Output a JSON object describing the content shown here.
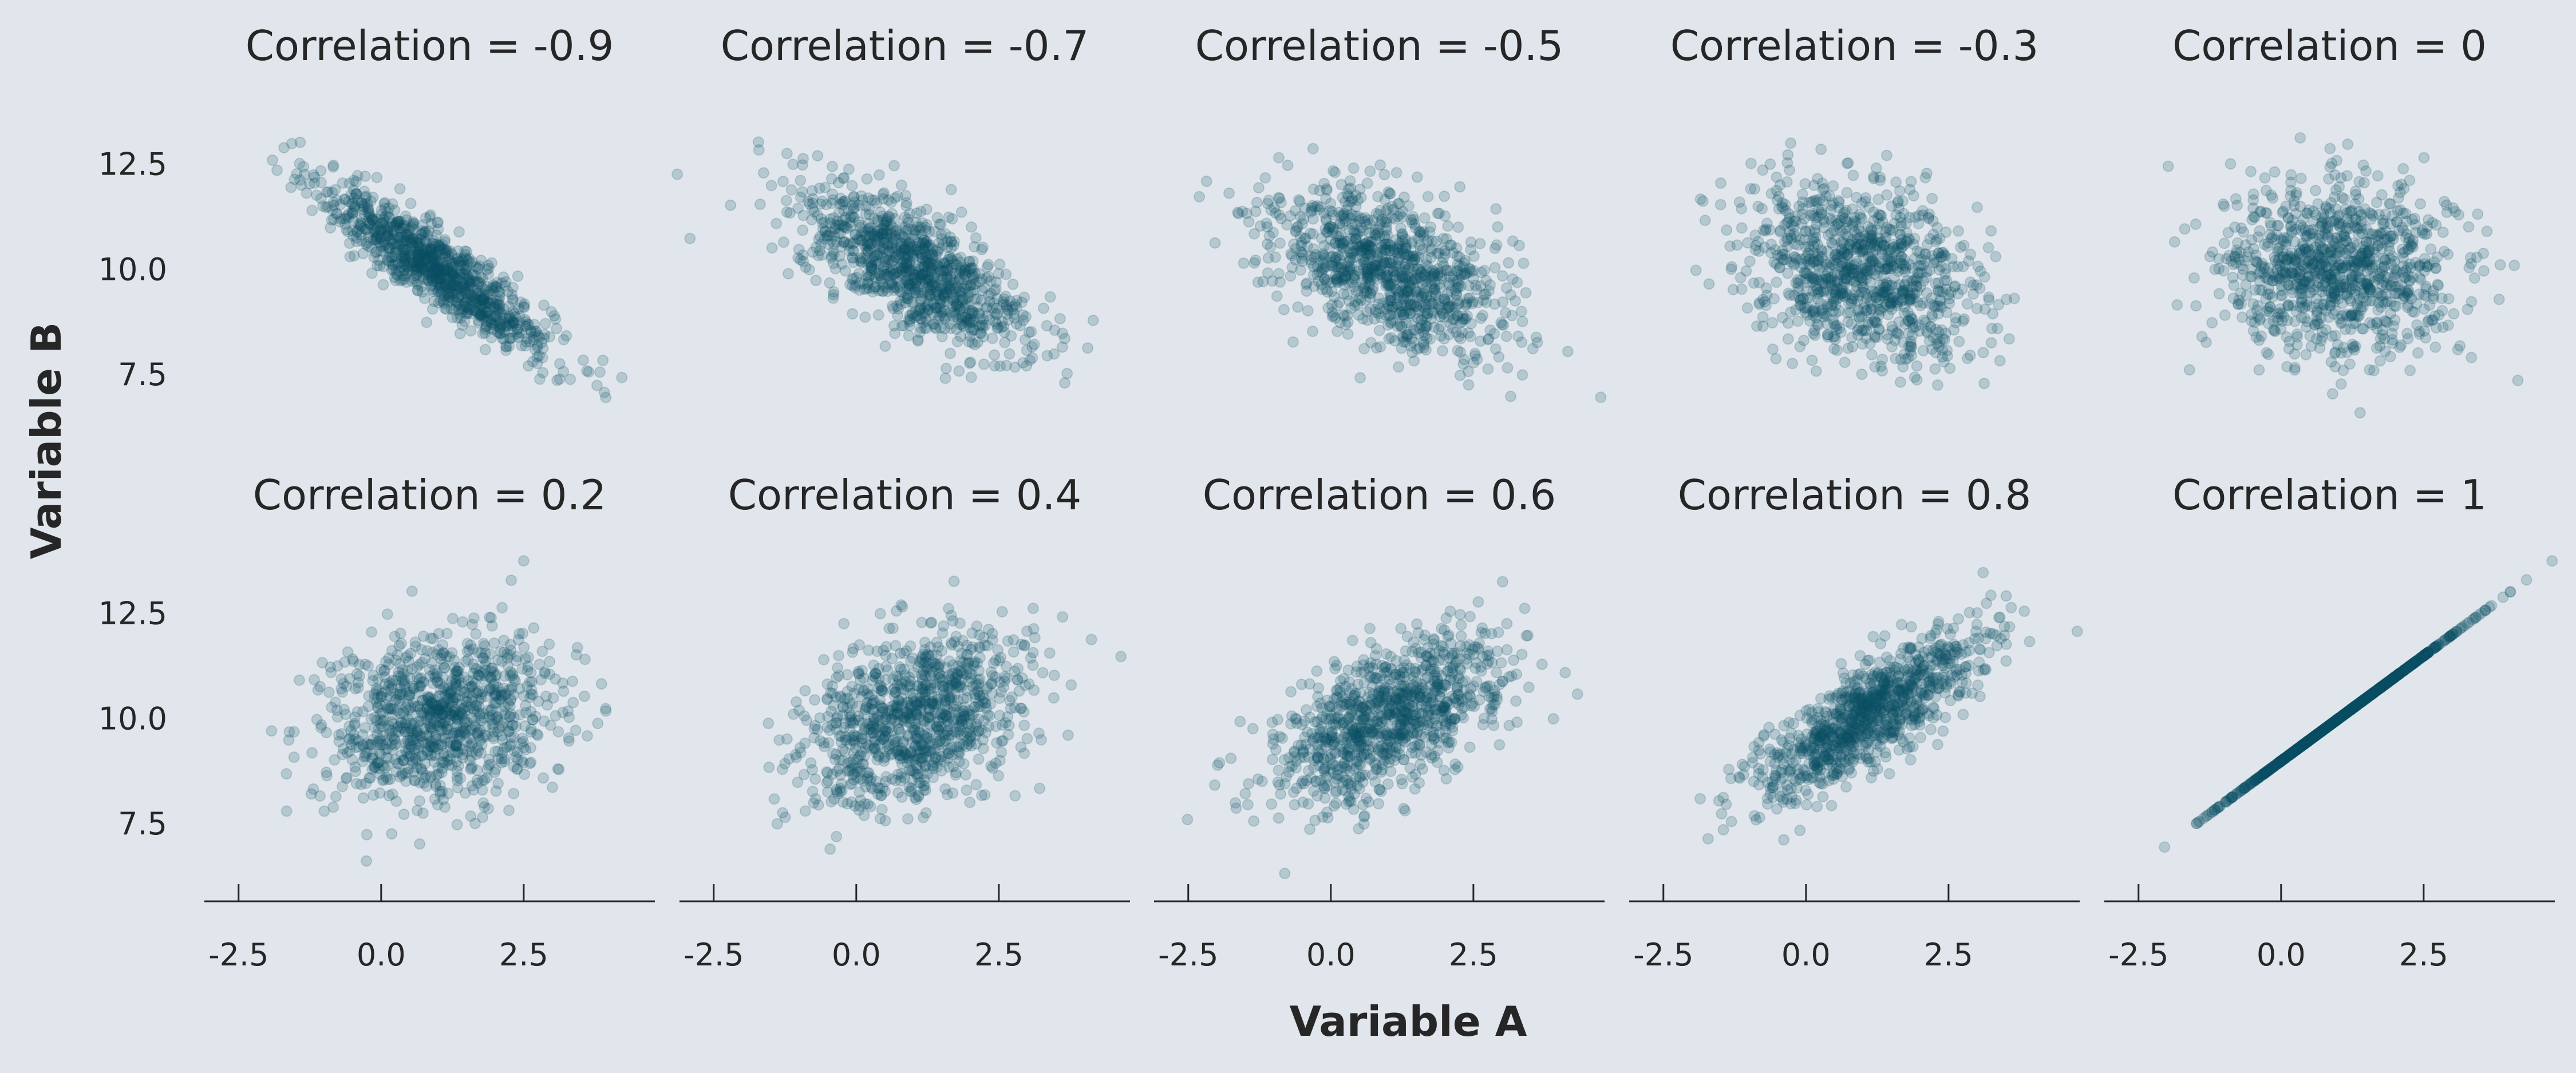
{
  "chart_data": {
    "type": "scatter",
    "layout": "facet-grid",
    "rows": 2,
    "cols": 5,
    "xlabel": "Variable A",
    "ylabel": "Variable B",
    "xlim": [
      -3.1,
      4.8
    ],
    "ylim": [
      5.6,
      14.3
    ],
    "xticks": [
      -2.5,
      0.0,
      2.5
    ],
    "xtick_labels": [
      "-2.5",
      "0.0",
      "2.5"
    ],
    "yticks": [
      7.5,
      10.0,
      12.5
    ],
    "ytick_labels": [
      "7.5",
      "10.0",
      "12.5"
    ],
    "grid": false,
    "point_color": "#0c4f66",
    "point_alpha": 0.2,
    "points_per_panel": 1000,
    "x_mean": 1.0,
    "x_sd": 1.0,
    "y_mean": 10.0,
    "y_sd": 1.0,
    "panels": [
      {
        "title": "Correlation = -0.9",
        "correlation": -0.9
      },
      {
        "title": "Correlation = -0.7",
        "correlation": -0.7
      },
      {
        "title": "Correlation = -0.5",
        "correlation": -0.5
      },
      {
        "title": "Correlation = -0.3",
        "correlation": -0.3
      },
      {
        "title": "Correlation = 0",
        "correlation": 0.0
      },
      {
        "title": "Correlation = 0.2",
        "correlation": 0.2
      },
      {
        "title": "Correlation = 0.4",
        "correlation": 0.4
      },
      {
        "title": "Correlation = 0.6",
        "correlation": 0.6
      },
      {
        "title": "Correlation = 0.8",
        "correlation": 0.8
      },
      {
        "title": "Correlation = 1",
        "correlation": 1.0
      }
    ]
  }
}
